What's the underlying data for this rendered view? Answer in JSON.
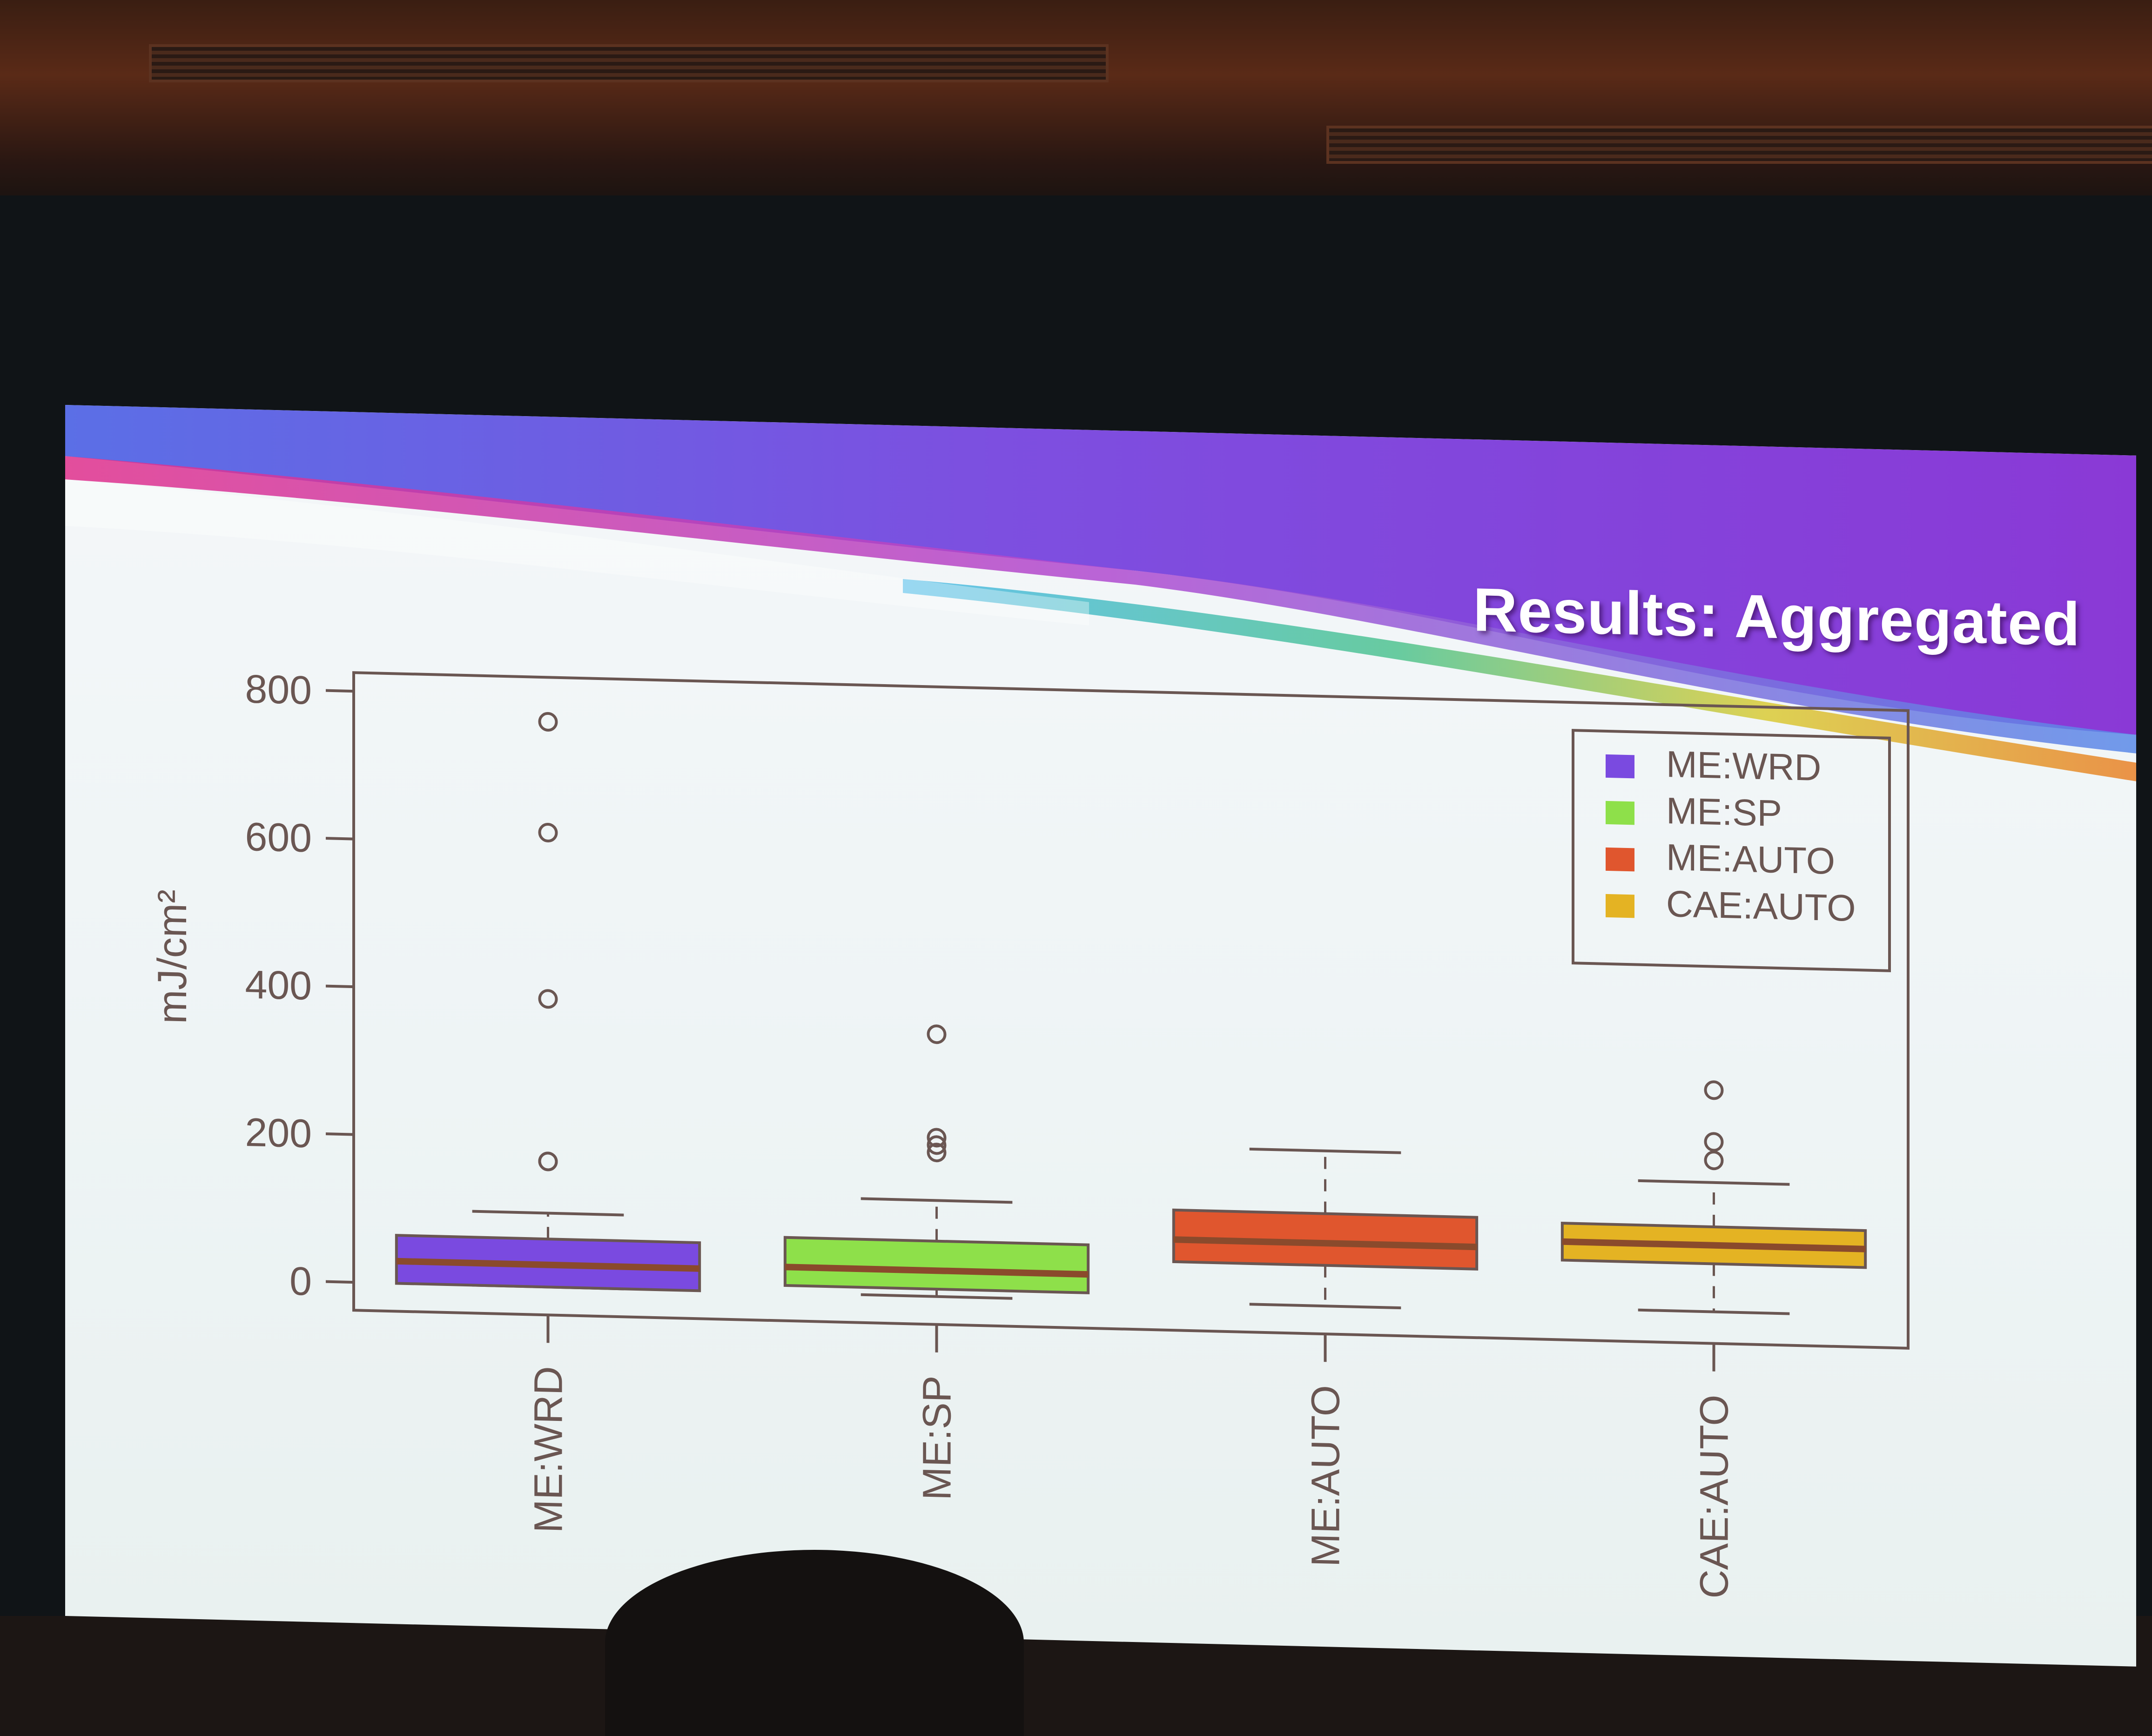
{
  "slide": {
    "title": "Results: Aggregated"
  },
  "colors": {
    "ME:WRD": "#7a4ae0",
    "ME:SP": "#8ee04a",
    "ME:AUTO": "#e0562e",
    "CAE:AUTO": "#e4b323",
    "median": "#8a4a2c",
    "axis": "#6a5652"
  },
  "chart_data": {
    "type": "boxplot",
    "title": "",
    "ylabel": "mJ/cm²",
    "xlabel": "",
    "ylim": [
      0,
      800
    ],
    "yticks": [
      0,
      200,
      400,
      600,
      800
    ],
    "grid": false,
    "legend_position": "top-right",
    "categories": [
      "ME:WRD",
      "ME:SP",
      "ME:AUTO",
      "CAE:AUTO"
    ],
    "legend": [
      "ME:WRD",
      "ME:SP",
      "ME:AUTO",
      "CAE:AUTO"
    ],
    "series": [
      {
        "name": "ME:WRD",
        "whisker_low": 0,
        "q1": 0,
        "median": 30,
        "q3": 65,
        "whisker_high": 100,
        "outliers": [
          170,
          170,
          390,
          615,
          765
        ]
      },
      {
        "name": "ME:SP",
        "whisker_low": 0,
        "q1": 10,
        "median": 35,
        "q3": 75,
        "whisker_high": 130,
        "outliers": [
          195,
          205,
          215,
          355
        ]
      },
      {
        "name": "ME:AUTO",
        "whisker_low": 0,
        "q1": 55,
        "median": 85,
        "q3": 125,
        "whisker_high": 210,
        "outliers": []
      },
      {
        "name": "CAE:AUTO",
        "whisker_low": 5,
        "q1": 70,
        "median": 95,
        "q3": 120,
        "whisker_high": 180,
        "outliers": [
          210,
          235,
          305
        ]
      }
    ]
  }
}
